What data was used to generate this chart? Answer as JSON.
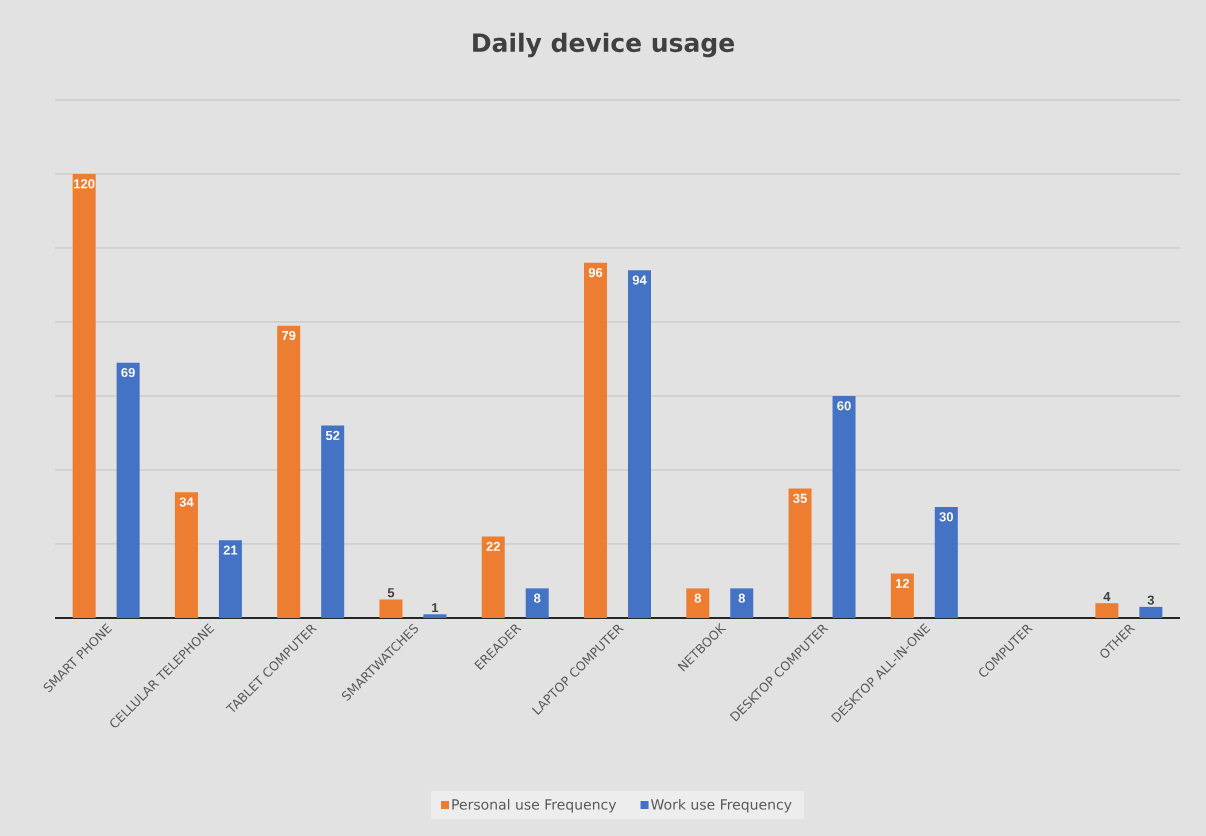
{
  "chart_data": {
    "type": "bar",
    "title": "Daily device usage",
    "categories": [
      "SMART PHONE",
      "CELLULAR TELEPHONE",
      "TABLET COMPUTER",
      "SMARTWATCHES",
      "EREADER",
      "LAPTOP COMPUTER",
      "NETBOOK",
      "DESKTOP COMPUTER",
      "DESKTOP ALL-IN-ONE",
      "COMPUTER",
      "OTHER"
    ],
    "series": [
      {
        "name": "Personal use Frequency",
        "color": "#ed7d31",
        "values": [
          120,
          34,
          79,
          5,
          22,
          96,
          8,
          35,
          12,
          null,
          4
        ]
      },
      {
        "name": "Work use Frequency",
        "color": "#4472c4",
        "values": [
          69,
          21,
          52,
          1,
          8,
          94,
          8,
          60,
          30,
          null,
          3
        ]
      }
    ],
    "ylim": [
      0,
      140
    ],
    "yticks": [
      {
        "value": 0,
        "label": null
      },
      {
        "value": 20,
        "label": null
      },
      {
        "value": 40,
        "label": null
      },
      {
        "value": 60,
        "label": null
      },
      {
        "value": 80,
        "label": null
      },
      {
        "value": 100,
        "label": null
      },
      {
        "value": 120,
        "label": null
      },
      {
        "value": 140,
        "label": null
      }
    ],
    "grid": "y",
    "legend": "bottom",
    "data_labels": true,
    "tick_labels": "x"
  }
}
